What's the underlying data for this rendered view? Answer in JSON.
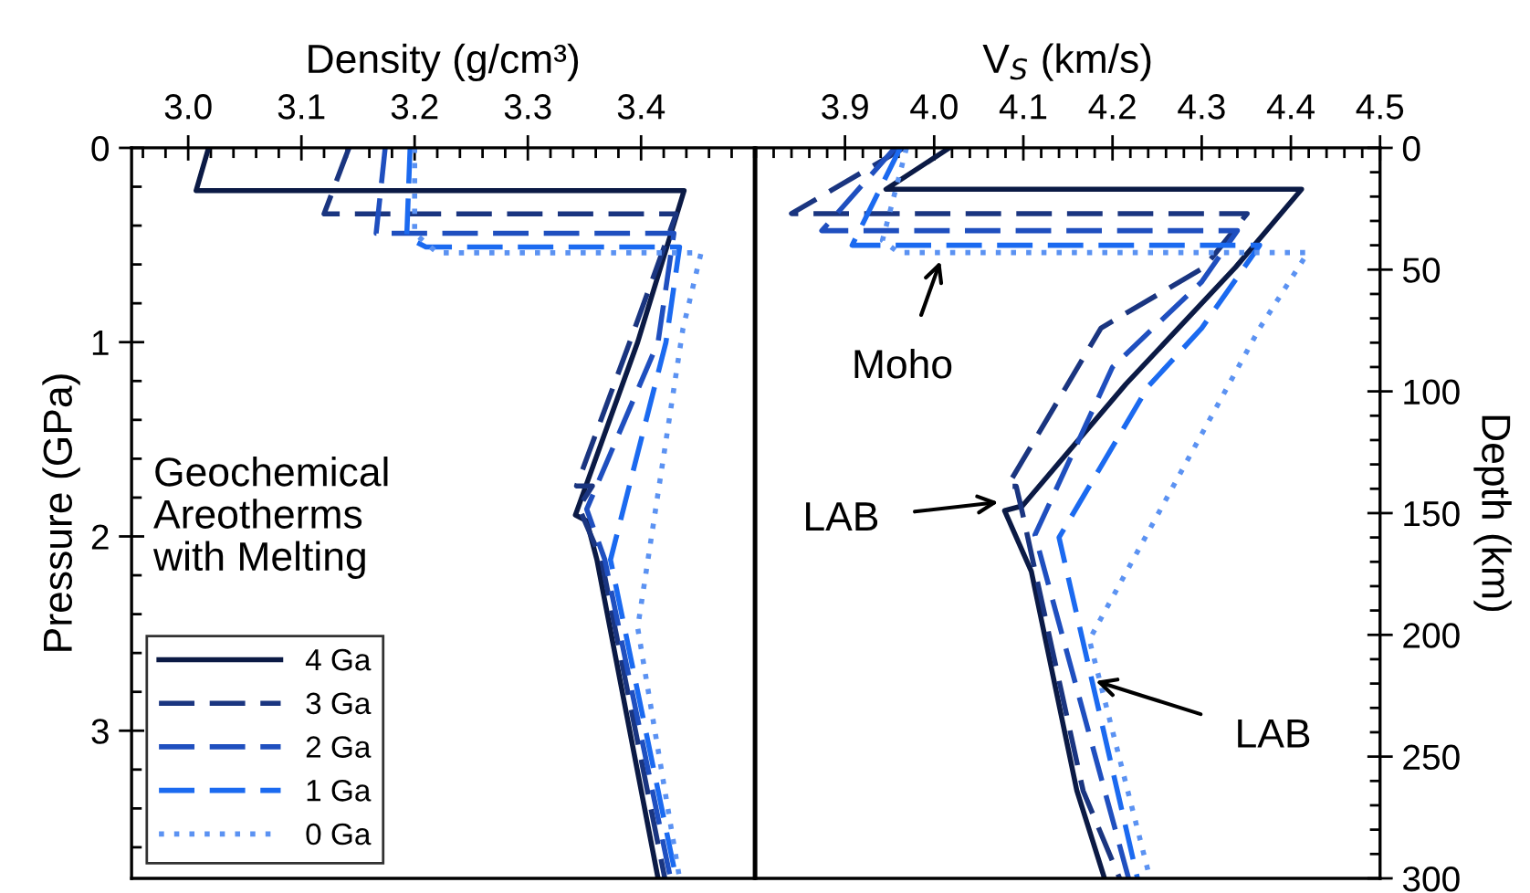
{
  "chart_data": [
    {
      "type": "line",
      "xlabel": "Density (g/cm³)",
      "ylabel": "Pressure (GPa)",
      "legend_title": "Geochemical\nAreotherms\nwith Melting",
      "legend": "bottom left",
      "xlim": [
        2.95,
        3.5
      ],
      "xticks": [
        {
          "value": 3.0,
          "label": "3.0"
        },
        3.1,
        3.2,
        3.3,
        3.4
      ],
      "ylim": [
        3.76,
        0
      ],
      "yticks": [
        0,
        1,
        2,
        3
      ],
      "series": [
        {
          "name": "4 Ga",
          "color": "#0b1a45",
          "line_style": "solid",
          "x": [
            3.018,
            3.007,
            3.438,
            3.397,
            3.342,
            3.352,
            3.361,
            3.415
          ],
          "values": [
            0,
            0.22,
            0.22,
            1.0,
            1.89,
            1.92,
            2.12,
            3.76
          ]
        },
        {
          "name": "3 Ga",
          "color": "#1a3580",
          "line_style": "dashed",
          "x": [
            3.142,
            3.12,
            3.431,
            3.39,
            3.343,
            3.357,
            3.345,
            3.365,
            3.421
          ],
          "values": [
            0,
            0.34,
            0.34,
            1.0,
            1.74,
            1.74,
            1.85,
            2.12,
            3.76
          ]
        },
        {
          "name": "2 Ga",
          "color": "#1f4fbf",
          "line_style": "dashed",
          "x": [
            3.174,
            3.166,
            3.429,
            3.415,
            3.36,
            3.352,
            3.368,
            3.426
          ],
          "values": [
            0,
            0.44,
            0.44,
            1.0,
            1.75,
            1.86,
            2.12,
            3.76
          ]
        },
        {
          "name": "1 Ga",
          "color": "#1b6af0",
          "line_style": "dashed",
          "x": [
            3.196,
            3.193,
            3.21,
            3.434,
            3.422,
            3.373,
            3.431
          ],
          "values": [
            0,
            0.46,
            0.51,
            0.51,
            1.0,
            2.12,
            3.76
          ]
        },
        {
          "name": "0 Ga",
          "color": "#5b92f2",
          "line_style": "dotted",
          "x": [
            3.2,
            3.2,
            3.22,
            3.453,
            3.437,
            3.397,
            3.434
          ],
          "values": [
            0,
            0.44,
            0.54,
            0.54,
            0.93,
            2.47,
            3.76
          ]
        }
      ]
    },
    {
      "type": "line",
      "xlabel": "V$_{S}$ (km/s)",
      "ylabel": "Depth (km)",
      "xlim": [
        3.8,
        4.5
      ],
      "xticks": [
        3.9,
        {
          "value": 4.0,
          "label": "4.0"
        },
        4.1,
        4.2,
        4.3,
        4.4,
        4.5
      ],
      "ylim": [
        300,
        0
      ],
      "yticks": [
        0,
        50,
        100,
        150,
        200,
        250,
        300
      ],
      "annotations": [
        {
          "text": "Moho",
          "x": 4.007,
          "y": 46.5
        },
        {
          "text": "LAB",
          "x": 4.072,
          "y": 145.5
        },
        {
          "text": "LAB",
          "x": 4.181,
          "y": 219
        }
      ],
      "series": [
        {
          "color": "#0b1a45",
          "line_style": "solid",
          "x": [
            4.017,
            3.946,
            4.412,
            4.338,
            4.215,
            4.099,
            4.079,
            4.109,
            4.16,
            4.191
          ],
          "values": [
            0,
            17,
            17,
            49,
            97,
            147,
            149,
            174,
            264,
            300
          ]
        },
        {
          "color": "#1a3580",
          "line_style": "dashed",
          "x": [
            3.966,
            3.84,
            4.351,
            4.303,
            4.187,
            4.082,
            4.092,
            4.099,
            4.167,
            4.208
          ],
          "values": [
            0,
            27,
            27,
            49,
            74,
            139,
            139,
            150,
            264,
            300
          ]
        },
        {
          "color": "#1f4fbf",
          "line_style": "dashed",
          "x": [
            3.956,
            3.874,
            4.34,
            4.3,
            4.2,
            4.113,
            4.218
          ],
          "values": [
            0,
            34,
            34,
            55,
            90,
            159,
            300
          ]
        },
        {
          "color": "#1b6af0",
          "line_style": "dashed",
          "x": [
            3.962,
            3.908,
            4.365,
            4.3,
            4.24,
            4.14,
            4.228
          ],
          "values": [
            0,
            40,
            40,
            74,
            98,
            160,
            300
          ]
        },
        {
          "color": "#5b92f2",
          "line_style": "dotted",
          "x": [
            3.969,
            3.942,
            3.96,
            4.419,
            4.365,
            4.174,
            4.242
          ],
          "values": [
            0,
            38,
            43,
            43,
            74,
            202,
            300
          ]
        }
      ]
    }
  ]
}
